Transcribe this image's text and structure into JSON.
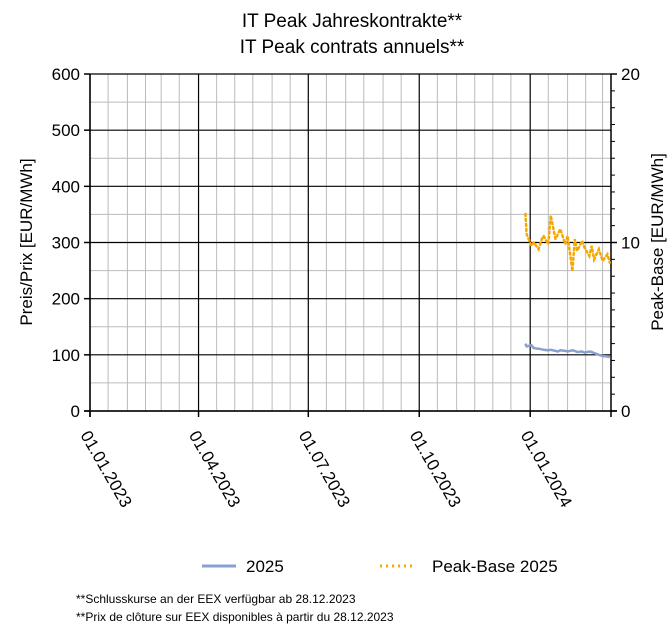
{
  "chart_data": {
    "type": "line",
    "title": "IT Peak Jahreskontrakte**",
    "subtitle": "IT Peak contrats annuels**",
    "ylabel": "Preis/Prix [EUR/MWh]",
    "y2label": "Peak-Base [EUR/MWh]",
    "ylim": [
      0,
      600
    ],
    "y2lim": [
      0,
      20
    ],
    "yticks": [
      "0",
      "100",
      "200",
      "300",
      "400",
      "500",
      "600"
    ],
    "y2ticks": [
      "0",
      "10",
      "20"
    ],
    "xlim": [
      "2023-01-01",
      "2024-03-08"
    ],
    "xticks": [
      {
        "date": "2023-01-01",
        "label": "01.01.2023"
      },
      {
        "date": "2023-04-01",
        "label": "01.04.2023"
      },
      {
        "date": "2023-07-01",
        "label": "01.07.2023"
      },
      {
        "date": "2023-10-01",
        "label": "01.10.2023"
      },
      {
        "date": "2024-01-01",
        "label": "01.01.2024"
      }
    ],
    "grid": true,
    "legend_position": "bottom",
    "series": [
      {
        "name": "2025",
        "axis": "left",
        "color": "#8a9fd1",
        "style": "solid",
        "x": [
          "2023-12-28",
          "2023-12-29",
          "2024-01-02",
          "2024-01-04",
          "2024-01-08",
          "2024-01-10",
          "2024-01-12",
          "2024-01-16",
          "2024-01-18",
          "2024-01-22",
          "2024-01-24",
          "2024-01-26",
          "2024-01-30",
          "2024-02-01",
          "2024-02-05",
          "2024-02-07",
          "2024-02-09",
          "2024-02-13",
          "2024-02-15",
          "2024-02-19",
          "2024-02-21",
          "2024-02-23",
          "2024-02-27",
          "2024-03-01",
          "2024-03-05",
          "2024-03-07"
        ],
        "y": [
          120,
          115,
          117,
          112,
          111,
          110,
          109,
          108,
          109,
          107,
          106,
          108,
          107,
          106,
          108,
          107,
          105,
          106,
          104,
          106,
          105,
          103,
          100,
          98,
          97,
          96
        ]
      },
      {
        "name": "Peak-Base 2025",
        "axis": "right",
        "color": "#f5a800",
        "style": "dotted",
        "x": [
          "2023-12-28",
          "2023-12-29",
          "2024-01-02",
          "2024-01-04",
          "2024-01-08",
          "2024-01-10",
          "2024-01-12",
          "2024-01-16",
          "2024-01-18",
          "2024-01-22",
          "2024-01-24",
          "2024-01-26",
          "2024-01-30",
          "2024-02-01",
          "2024-02-05",
          "2024-02-07",
          "2024-02-09",
          "2024-02-13",
          "2024-02-15",
          "2024-02-19",
          "2024-02-21",
          "2024-02-23",
          "2024-02-27",
          "2024-03-01",
          "2024-03-05",
          "2024-03-07"
        ],
        "y": [
          11.7,
          10.5,
          9.8,
          10.0,
          9.6,
          10.1,
          10.4,
          9.9,
          11.6,
          10.2,
          10.5,
          10.8,
          9.9,
          10.4,
          8.3,
          10.2,
          9.5,
          10.1,
          9.7,
          9.2,
          9.8,
          9.0,
          9.6,
          8.9,
          9.3,
          8.8
        ]
      }
    ]
  },
  "footnotes": {
    "line1": "**Schlusskurse an der EEX verfügbar ab 28.12.2023",
    "line2": "**Prix de clôture sur EEX disponibles à partir du 28.12.2023"
  }
}
